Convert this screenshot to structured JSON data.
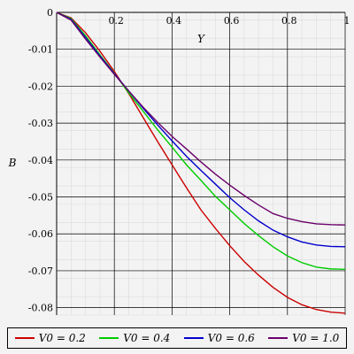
{
  "chart_data": {
    "type": "line",
    "title": "",
    "xlabel": "Y",
    "ylabel": "B",
    "xlim": [
      0,
      1
    ],
    "ylim": [
      -0.082,
      0
    ],
    "grid": true,
    "legend_position": "bottom",
    "x_ticks": [
      {
        "value": 0.2,
        "label": "0.2"
      },
      {
        "value": 0.4,
        "label": "0.4"
      },
      {
        "value": 0.6,
        "label": "0.6"
      },
      {
        "value": 0.8,
        "label": "0.8"
      },
      {
        "value": 1,
        "label": "1"
      }
    ],
    "y_ticks": [
      {
        "value": 0,
        "label": "0"
      },
      {
        "value": -0.01,
        "label": "-0.01"
      },
      {
        "value": -0.02,
        "label": "-0.02"
      },
      {
        "value": -0.03,
        "label": "-0.03"
      },
      {
        "value": -0.04,
        "label": "-0.04"
      },
      {
        "value": -0.05,
        "label": "-0.05"
      },
      {
        "value": -0.06,
        "label": "-0.06"
      },
      {
        "value": -0.07,
        "label": "-0.07"
      },
      {
        "value": -0.08,
        "label": "-0.08"
      }
    ],
    "x": [
      0,
      0.05,
      0.1,
      0.15,
      0.2,
      0.25,
      0.3,
      0.35,
      0.4,
      0.45,
      0.5,
      0.55,
      0.6,
      0.65,
      0.7,
      0.75,
      0.8,
      0.85,
      0.9,
      0.95,
      1.0
    ],
    "series": [
      {
        "name": "V0 = 0.2",
        "color": "#cc0000",
        "values": [
          0,
          -0.0015,
          -0.0055,
          -0.0105,
          -0.016,
          -0.022,
          -0.0285,
          -0.035,
          -0.0413,
          -0.0475,
          -0.0535,
          -0.0585,
          -0.0632,
          -0.0675,
          -0.0712,
          -0.0745,
          -0.0772,
          -0.0792,
          -0.0805,
          -0.0812,
          -0.0815
        ]
      },
      {
        "name": "V0 = 0.4",
        "color": "#00cc00",
        "values": [
          0,
          -0.0017,
          -0.0063,
          -0.0115,
          -0.0165,
          -0.0218,
          -0.0268,
          -0.0318,
          -0.0365,
          -0.0413,
          -0.0455,
          -0.0498,
          -0.0535,
          -0.0572,
          -0.0605,
          -0.0635,
          -0.066,
          -0.0678,
          -0.069,
          -0.0695,
          -0.0696
        ]
      },
      {
        "name": "V0 = 0.6",
        "color": "#0000cc",
        "values": [
          0,
          -0.0019,
          -0.0068,
          -0.0118,
          -0.0166,
          -0.0213,
          -0.026,
          -0.0305,
          -0.0348,
          -0.039,
          -0.0428,
          -0.0465,
          -0.0502,
          -0.0535,
          -0.0565,
          -0.059,
          -0.0608,
          -0.0622,
          -0.063,
          -0.0634,
          -0.0635
        ]
      },
      {
        "name": "V0 = 1.0",
        "color": "#6a006a",
        "values": [
          0,
          -0.0021,
          -0.0072,
          -0.0121,
          -0.0168,
          -0.0213,
          -0.0257,
          -0.0298,
          -0.0336,
          -0.037,
          -0.0405,
          -0.0438,
          -0.0468,
          -0.0496,
          -0.0522,
          -0.0545,
          -0.0558,
          -0.0567,
          -0.0573,
          -0.0575,
          -0.0576
        ]
      }
    ]
  }
}
